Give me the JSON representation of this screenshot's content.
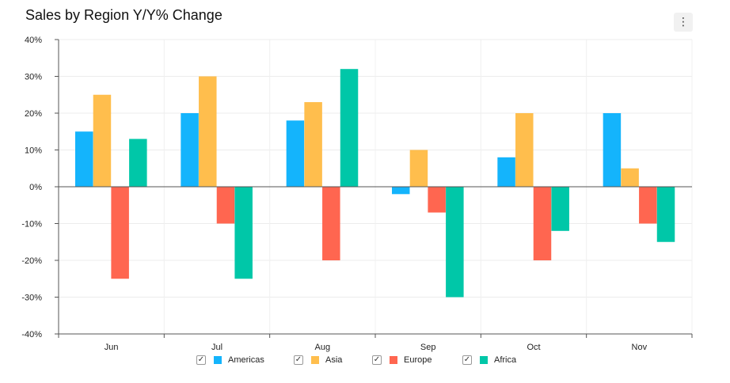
{
  "window": {
    "title": "Sales by Region Y/Y% Change"
  },
  "icons": {
    "menu": "more-vertical-icon",
    "check": "check-icon"
  },
  "chart_data": {
    "type": "bar",
    "title": "Sales by Region Y/Y% Change",
    "categories": [
      "Jun",
      "Jul",
      "Aug",
      "Sep",
      "Oct",
      "Nov"
    ],
    "ylim": [
      -40,
      40
    ],
    "yticks": [
      40,
      30,
      20,
      10,
      0,
      -10,
      -20,
      -30,
      -40
    ],
    "ytick_labels": [
      "40%",
      "30%",
      "20%",
      "10%",
      "0%",
      "-10%",
      "-20%",
      "-30%",
      "-40%"
    ],
    "grid": true,
    "legend_position": "bottom-center",
    "series": [
      {
        "name": "Americas",
        "color": "#14b4fc",
        "values": [
          15,
          20,
          18,
          -2,
          8,
          20
        ]
      },
      {
        "name": "Asia",
        "color": "#ffbe4d",
        "values": [
          25,
          30,
          23,
          10,
          20,
          5
        ]
      },
      {
        "name": "Europe",
        "color": "#ff6650",
        "values": [
          -25,
          -10,
          -20,
          -7,
          -20,
          -10
        ]
      },
      {
        "name": "Africa",
        "color": "#00c7a8",
        "values": [
          13,
          -25,
          32,
          -30,
          -12,
          -15
        ]
      }
    ]
  }
}
